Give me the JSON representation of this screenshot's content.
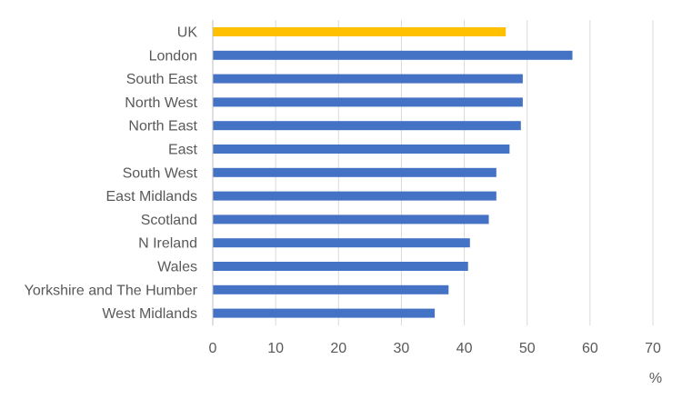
{
  "chart_data": {
    "type": "bar",
    "orientation": "horizontal",
    "title": "",
    "xlabel": "",
    "ylabel": "",
    "unit_label": "%",
    "xlim": [
      0,
      70
    ],
    "x_ticks": [
      "0",
      "10",
      "20",
      "30",
      "40",
      "50",
      "60",
      "70"
    ],
    "grid": "vertical",
    "categories": [
      "UK",
      "London",
      "South East",
      "North West",
      "North East",
      "East",
      "South West",
      "East Midlands",
      "Scotland",
      "N Ireland",
      "Wales",
      "Yorkshire and The Humber",
      "West Midlands"
    ],
    "values": [
      46.6,
      57.2,
      49.3,
      49.3,
      49.0,
      47.2,
      45.1,
      45.1,
      43.9,
      40.9,
      40.6,
      37.5,
      35.3
    ],
    "bar_colors": {
      "highlight": "#FFC000",
      "default": "#4472C4"
    },
    "highlight_categories": [
      "UK"
    ],
    "colors": {
      "grid": "#D9D9D9",
      "axis": "#BFBFBF",
      "text": "#595959"
    }
  }
}
